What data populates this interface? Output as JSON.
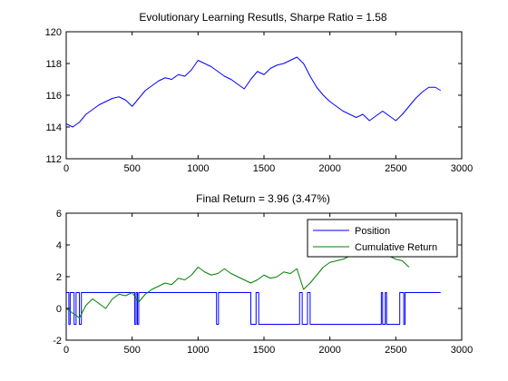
{
  "chart_data": [
    {
      "type": "line",
      "title": "Evolutionary Learning Resutls, Sharpe Ratio = 1.58",
      "xlabel": "",
      "ylabel": "",
      "xlim": [
        0,
        3000
      ],
      "ylim": [
        112,
        120
      ],
      "xticks": [
        0,
        500,
        1000,
        1500,
        2000,
        2500,
        3000
      ],
      "yticks": [
        112,
        114,
        116,
        118,
        120
      ],
      "grid": false,
      "series": [
        {
          "color": "#0000ff",
          "x": [
            0,
            50,
            100,
            150,
            200,
            250,
            300,
            350,
            400,
            450,
            500,
            550,
            600,
            650,
            700,
            750,
            800,
            850,
            900,
            950,
            1000,
            1050,
            1100,
            1150,
            1200,
            1250,
            1300,
            1350,
            1400,
            1450,
            1500,
            1550,
            1600,
            1650,
            1700,
            1750,
            1800,
            1850,
            1900,
            1950,
            2000,
            2050,
            2100,
            2150,
            2200,
            2250,
            2300,
            2350,
            2400,
            2450,
            2500,
            2550,
            2600,
            2650,
            2700,
            2750,
            2800,
            2840
          ],
          "y": [
            114.2,
            114.0,
            114.3,
            114.8,
            115.1,
            115.4,
            115.6,
            115.8,
            115.9,
            115.7,
            115.3,
            115.8,
            116.3,
            116.6,
            116.9,
            117.1,
            117.0,
            117.3,
            117.2,
            117.6,
            118.2,
            118.0,
            117.8,
            117.5,
            117.2,
            117.0,
            116.7,
            116.4,
            117.0,
            117.5,
            117.3,
            117.7,
            117.9,
            118.0,
            118.2,
            118.4,
            118.0,
            117.2,
            116.5,
            116.0,
            115.6,
            115.3,
            115.0,
            114.8,
            114.6,
            114.8,
            114.4,
            114.7,
            115.0,
            114.7,
            114.4,
            114.8,
            115.3,
            115.8,
            116.2,
            116.5,
            116.5,
            116.3
          ]
        }
      ]
    },
    {
      "type": "line",
      "title": "Final Return = 3.96 (3.47%)",
      "xlabel": "",
      "ylabel": "",
      "xlim": [
        0,
        3000
      ],
      "ylim": [
        -2,
        6
      ],
      "xticks": [
        0,
        500,
        1000,
        1500,
        2000,
        2500,
        3000
      ],
      "yticks": [
        -2,
        0,
        2,
        4,
        6
      ],
      "grid": false,
      "legend": "top-right",
      "series": [
        {
          "name": "Position",
          "color": "#0000ff",
          "x": [
            0,
            20,
            20,
            30,
            30,
            60,
            60,
            75,
            75,
            100,
            100,
            115,
            115,
            520,
            520,
            530,
            530,
            540,
            540,
            550,
            550,
            1140,
            1140,
            1155,
            1155,
            1400,
            1400,
            1440,
            1440,
            1460,
            1460,
            1770,
            1770,
            1790,
            1790,
            1830,
            1830,
            1850,
            1850,
            2390,
            2390,
            2400,
            2400,
            2420,
            2420,
            2430,
            2430,
            2530,
            2530,
            2560,
            2560,
            2570,
            2570,
            2840
          ],
          "y": [
            1,
            1,
            -1,
            -1,
            1,
            1,
            -1,
            -1,
            1,
            1,
            -1,
            -1,
            1,
            1,
            -1,
            -1,
            1,
            1,
            -1,
            -1,
            1,
            1,
            -1,
            -1,
            1,
            1,
            -1,
            -1,
            1,
            1,
            -1,
            -1,
            1,
            1,
            -1,
            -1,
            1,
            1,
            -1,
            -1,
            1,
            1,
            -1,
            -1,
            1,
            1,
            -1,
            -1,
            1,
            1,
            -1,
            -1,
            1,
            1
          ]
        },
        {
          "name": "Cumulative Return",
          "color": "#008000",
          "x": [
            0,
            50,
            100,
            150,
            200,
            250,
            300,
            350,
            400,
            450,
            500,
            550,
            600,
            650,
            700,
            750,
            800,
            850,
            900,
            950,
            1000,
            1050,
            1100,
            1150,
            1200,
            1250,
            1300,
            1350,
            1400,
            1450,
            1500,
            1550,
            1600,
            1650,
            1700,
            1750,
            1800,
            1850,
            1900,
            1950,
            2000,
            2050,
            2100,
            2150,
            2200,
            2250,
            2300,
            2350,
            2400,
            2450,
            2500,
            2550,
            2600
          ],
          "y": [
            0,
            -0.3,
            -0.6,
            0.2,
            0.6,
            0.3,
            0.0,
            0.6,
            0.9,
            0.8,
            1.0,
            0.4,
            0.9,
            1.2,
            1.4,
            1.6,
            1.5,
            1.9,
            1.8,
            2.1,
            2.6,
            2.3,
            2.1,
            2.2,
            2.5,
            2.2,
            2.0,
            1.8,
            1.6,
            1.8,
            2.1,
            1.9,
            2.0,
            2.3,
            2.2,
            2.5,
            1.2,
            1.6,
            2.1,
            2.6,
            2.9,
            3.0,
            3.1,
            3.3,
            3.5,
            3.7,
            3.5,
            3.4,
            3.6,
            3.3,
            3.1,
            3.0,
            2.6
          ]
        }
      ]
    }
  ]
}
